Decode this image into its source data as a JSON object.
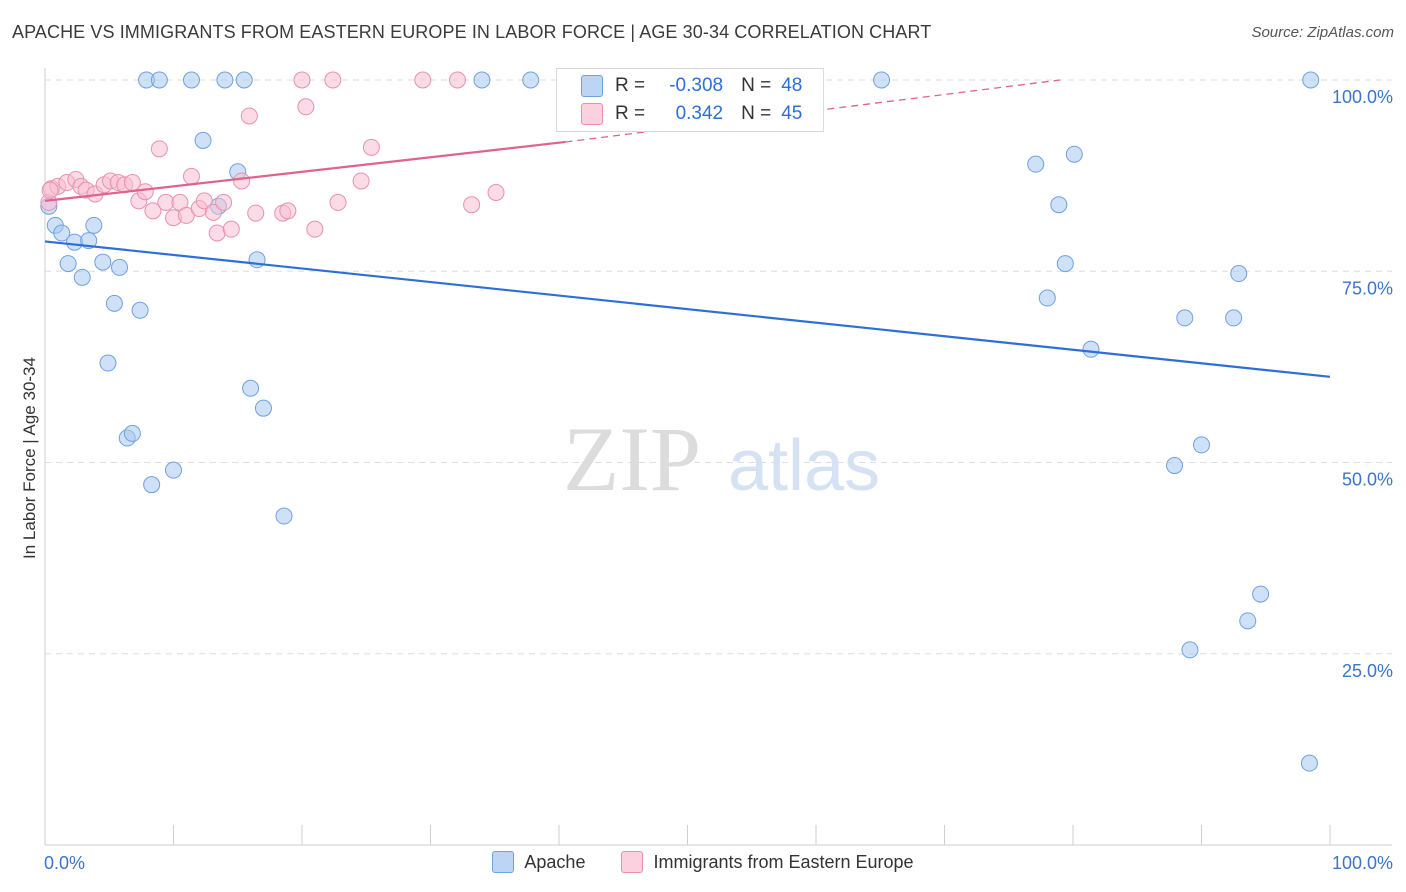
{
  "title": "APACHE VS IMMIGRANTS FROM EASTERN EUROPE IN LABOR FORCE | AGE 30-34 CORRELATION CHART",
  "source": "Source: ZipAtlas.com",
  "watermark": {
    "zip": "ZIP",
    "atlas": "atlas"
  },
  "stats": {
    "apache": {
      "r_label": "R =",
      "r": "-0.308",
      "n_label": "N =",
      "n": "48"
    },
    "immigrants": {
      "r_label": "R =",
      "r": "0.342",
      "n_label": "N =",
      "n": "45"
    }
  },
  "chart_data": {
    "type": "scatter",
    "title": "APACHE VS IMMIGRANTS FROM EASTERN EUROPE IN LABOR FORCE | AGE 30-34 CORRELATION CHART",
    "xlabel": "",
    "ylabel": "In Labor Force | Age 30-34",
    "xlim": [
      0,
      100
    ],
    "ylim": [
      0,
      100
    ],
    "x_tick_labels": [
      "0.0%",
      "100.0%"
    ],
    "y_ticks": [
      25,
      50,
      75,
      100
    ],
    "y_tick_labels": [
      "25.0%",
      "50.0%",
      "75.0%",
      "100.0%"
    ],
    "legend_position": "bottom-center",
    "series": [
      {
        "name": "Apache",
        "color": "#a8c8f0",
        "edge_color": "#6fa1e0",
        "line_color": "#2d6fd6",
        "trend": {
          "x": [
            0,
            100
          ],
          "y": [
            78.9,
            61.2
          ]
        },
        "points": [
          {
            "x": 0.3,
            "y": 83.5
          },
          {
            "x": 0.8,
            "y": 81.0
          },
          {
            "x": 1.3,
            "y": 80.0
          },
          {
            "x": 1.8,
            "y": 76.0
          },
          {
            "x": 2.3,
            "y": 78.8
          },
          {
            "x": 2.9,
            "y": 74.2
          },
          {
            "x": 3.4,
            "y": 79.0
          },
          {
            "x": 3.8,
            "y": 81.0
          },
          {
            "x": 4.5,
            "y": 76.2
          },
          {
            "x": 5.4,
            "y": 70.8
          },
          {
            "x": 5.8,
            "y": 75.5
          },
          {
            "x": 4.9,
            "y": 63.0
          },
          {
            "x": 7.4,
            "y": 69.9
          },
          {
            "x": 6.4,
            "y": 53.2
          },
          {
            "x": 6.8,
            "y": 53.8
          },
          {
            "x": 8.3,
            "y": 47.1
          },
          {
            "x": 10.0,
            "y": 49.0
          },
          {
            "x": 7.9,
            "y": 100.0
          },
          {
            "x": 8.9,
            "y": 100.0
          },
          {
            "x": 11.4,
            "y": 100.0
          },
          {
            "x": 14.0,
            "y": 100.0
          },
          {
            "x": 15.5,
            "y": 100.0
          },
          {
            "x": 12.3,
            "y": 92.1
          },
          {
            "x": 15.0,
            "y": 88.0
          },
          {
            "x": 13.5,
            "y": 83.5
          },
          {
            "x": 16.5,
            "y": 76.5
          },
          {
            "x": 16.0,
            "y": 59.7
          },
          {
            "x": 17.0,
            "y": 57.1
          },
          {
            "x": 18.6,
            "y": 43.0
          },
          {
            "x": 34.0,
            "y": 100.0
          },
          {
            "x": 37.8,
            "y": 100.0
          },
          {
            "x": 65.1,
            "y": 100.0
          },
          {
            "x": 98.5,
            "y": 100.0
          },
          {
            "x": 77.1,
            "y": 89.0
          },
          {
            "x": 80.1,
            "y": 90.3
          },
          {
            "x": 78.9,
            "y": 83.7
          },
          {
            "x": 79.4,
            "y": 76.0
          },
          {
            "x": 78.0,
            "y": 71.5
          },
          {
            "x": 81.4,
            "y": 64.8
          },
          {
            "x": 88.7,
            "y": 68.9
          },
          {
            "x": 92.9,
            "y": 74.7
          },
          {
            "x": 92.5,
            "y": 68.9
          },
          {
            "x": 87.9,
            "y": 49.6
          },
          {
            "x": 90.0,
            "y": 52.3
          },
          {
            "x": 94.6,
            "y": 32.8
          },
          {
            "x": 93.6,
            "y": 29.3
          },
          {
            "x": 89.1,
            "y": 25.5
          },
          {
            "x": 98.4,
            "y": 10.7
          }
        ]
      },
      {
        "name": "Immigrants from Eastern Europe",
        "color": "#f8bfd2",
        "edge_color": "#eb8fb0",
        "line_color": "#e0628e",
        "trend": {
          "x": [
            0,
            40.5
          ],
          "y": [
            84.2,
            91.9
          ]
        },
        "trend_dashed": {
          "x": [
            40.5,
            79.0
          ],
          "y": [
            91.9,
            100.0
          ]
        },
        "points": [
          {
            "x": 0.3,
            "y": 84.0
          },
          {
            "x": 0.5,
            "y": 85.8
          },
          {
            "x": 1.0,
            "y": 86.1
          },
          {
            "x": 1.7,
            "y": 86.6
          },
          {
            "x": 2.4,
            "y": 87.0
          },
          {
            "x": 2.8,
            "y": 86.1
          },
          {
            "x": 3.2,
            "y": 85.6
          },
          {
            "x": 3.9,
            "y": 85.1
          },
          {
            "x": 4.6,
            "y": 86.3
          },
          {
            "x": 5.1,
            "y": 86.8
          },
          {
            "x": 5.7,
            "y": 86.6
          },
          {
            "x": 6.2,
            "y": 86.3
          },
          {
            "x": 6.8,
            "y": 86.6
          },
          {
            "x": 7.3,
            "y": 84.2
          },
          {
            "x": 7.8,
            "y": 85.4
          },
          {
            "x": 8.4,
            "y": 82.9
          },
          {
            "x": 8.9,
            "y": 91.0
          },
          {
            "x": 9.4,
            "y": 84.0
          },
          {
            "x": 10.0,
            "y": 82.0
          },
          {
            "x": 10.5,
            "y": 84.0
          },
          {
            "x": 11.0,
            "y": 82.3
          },
          {
            "x": 11.4,
            "y": 87.4
          },
          {
            "x": 12.0,
            "y": 83.2
          },
          {
            "x": 12.4,
            "y": 84.2
          },
          {
            "x": 13.1,
            "y": 82.7
          },
          {
            "x": 13.4,
            "y": 80.0
          },
          {
            "x": 13.9,
            "y": 84.0
          },
          {
            "x": 14.5,
            "y": 80.5
          },
          {
            "x": 15.3,
            "y": 86.8
          },
          {
            "x": 15.9,
            "y": 95.3
          },
          {
            "x": 16.4,
            "y": 82.6
          },
          {
            "x": 18.5,
            "y": 82.6
          },
          {
            "x": 18.9,
            "y": 82.9
          },
          {
            "x": 20.0,
            "y": 100.0
          },
          {
            "x": 20.3,
            "y": 96.5
          },
          {
            "x": 21.0,
            "y": 80.5
          },
          {
            "x": 22.4,
            "y": 100.0
          },
          {
            "x": 22.8,
            "y": 84.0
          },
          {
            "x": 24.6,
            "y": 86.8
          },
          {
            "x": 25.4,
            "y": 91.2
          },
          {
            "x": 29.4,
            "y": 100.0
          },
          {
            "x": 32.1,
            "y": 100.0
          },
          {
            "x": 33.2,
            "y": 83.7
          },
          {
            "x": 35.1,
            "y": 85.3
          },
          {
            "x": 0.4,
            "y": 85.6
          }
        ]
      }
    ]
  }
}
